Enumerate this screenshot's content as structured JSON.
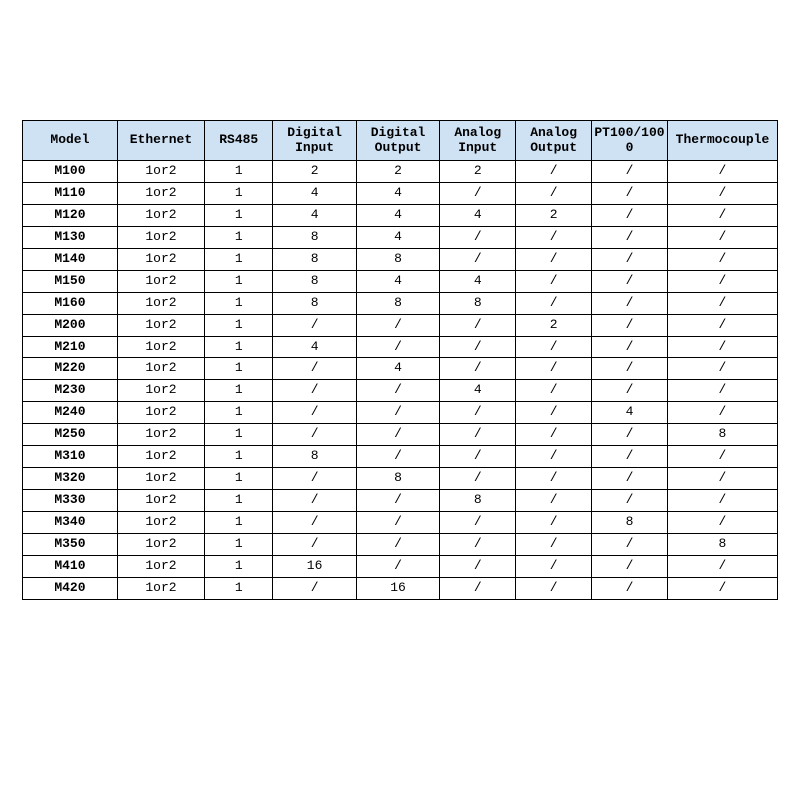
{
  "table": {
    "type": "table",
    "header_bg": "#cfe2f3",
    "border_color": "#000000",
    "background_color": "#ffffff",
    "font_family": "Courier New",
    "header_fontsize": 13,
    "body_fontsize": 13,
    "column_widths_pct": [
      12.5,
      11.5,
      9,
      11,
      11,
      10,
      10,
      10,
      14.5
    ],
    "columns": [
      "Model",
      "Ethernet",
      "RS485",
      "Digital Input",
      "Digital Output",
      "Analog Input",
      "Analog Output",
      "PT100/1000",
      "Thermocouple"
    ],
    "rows": [
      [
        "M100",
        "1or2",
        "1",
        "2",
        "2",
        "2",
        "/",
        "/",
        "/"
      ],
      [
        "M110",
        "1or2",
        "1",
        "4",
        "4",
        "/",
        "/",
        "/",
        "/"
      ],
      [
        "M120",
        "1or2",
        "1",
        "4",
        "4",
        "4",
        "2",
        "/",
        "/"
      ],
      [
        "M130",
        "1or2",
        "1",
        "8",
        "4",
        "/",
        "/",
        "/",
        "/"
      ],
      [
        "M140",
        "1or2",
        "1",
        "8",
        "8",
        "/",
        "/",
        "/",
        "/"
      ],
      [
        "M150",
        "1or2",
        "1",
        "8",
        "4",
        "4",
        "/",
        "/",
        "/"
      ],
      [
        "M160",
        "1or2",
        "1",
        "8",
        "8",
        "8",
        "/",
        "/",
        "/"
      ],
      [
        "M200",
        "1or2",
        "1",
        "/",
        "/",
        "/",
        "2",
        "/",
        "/"
      ],
      [
        "M210",
        "1or2",
        "1",
        "4",
        "/",
        "/",
        "/",
        "/",
        "/"
      ],
      [
        "M220",
        "1or2",
        "1",
        "/",
        "4",
        "/",
        "/",
        "/",
        "/"
      ],
      [
        "M230",
        "1or2",
        "1",
        "/",
        "/",
        "4",
        "/",
        "/",
        "/"
      ],
      [
        "M240",
        "1or2",
        "1",
        "/",
        "/",
        "/",
        "/",
        "4",
        "/"
      ],
      [
        "M250",
        "1or2",
        "1",
        "/",
        "/",
        "/",
        "/",
        "/",
        "8"
      ],
      [
        "M310",
        "1or2",
        "1",
        "8",
        "/",
        "/",
        "/",
        "/",
        "/"
      ],
      [
        "M320",
        "1or2",
        "1",
        "/",
        "8",
        "/",
        "/",
        "/",
        "/"
      ],
      [
        "M330",
        "1or2",
        "1",
        "/",
        "/",
        "8",
        "/",
        "/",
        "/"
      ],
      [
        "M340",
        "1or2",
        "1",
        "/",
        "/",
        "/",
        "/",
        "8",
        "/"
      ],
      [
        "M350",
        "1or2",
        "1",
        "/",
        "/",
        "/",
        "/",
        "/",
        "8"
      ],
      [
        "M410",
        "1or2",
        "1",
        "16",
        "/",
        "/",
        "/",
        "/",
        "/"
      ],
      [
        "M420",
        "1or2",
        "1",
        "/",
        "16",
        "/",
        "/",
        "/",
        "/"
      ]
    ]
  }
}
